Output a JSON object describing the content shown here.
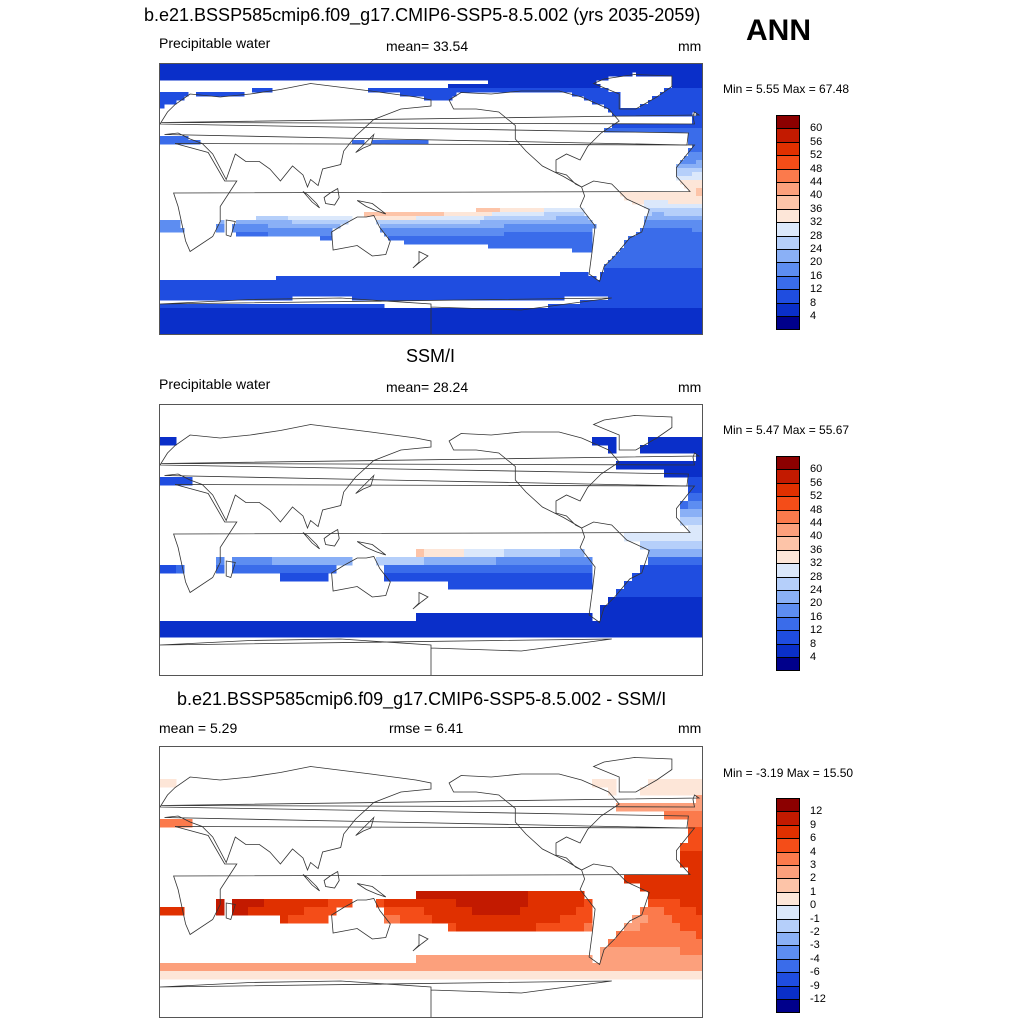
{
  "season": "ANN",
  "panels": [
    {
      "title": "b.e21.BSSP585cmip6.f09_g17.CMIP6-SSP5-8.5.002 (yrs 2035-2059)",
      "left_label": "Precipitable water",
      "center_label": "mean=  33.54",
      "units": "mm",
      "minmax": "Min =   5.55 Max =  67.48",
      "kind": "model"
    },
    {
      "title": "SSM/I",
      "left_label": "Precipitable water",
      "center_label": "mean=  28.24",
      "units": "mm",
      "minmax": "Min =   5.47 Max =  55.67",
      "kind": "obs"
    },
    {
      "title": "b.e21.BSSP585cmip6.f09_g17.CMIP6-SSP5-8.5.002 - SSM/I",
      "left_label": "mean =   5.29",
      "center_label": "rmse =   6.41",
      "units": "mm",
      "minmax": "Min =  -3.19 Max =  15.50",
      "kind": "diff"
    }
  ],
  "colorbars": [
    {
      "ticks": [
        "60",
        "56",
        "52",
        "48",
        "44",
        "40",
        "36",
        "32",
        "28",
        "24",
        "20",
        "16",
        "12",
        "8",
        "4"
      ],
      "colors": [
        "#8c0000",
        "#c31a00",
        "#e03000",
        "#f44d18",
        "#fb7a4c",
        "#fca07c",
        "#fdc4a8",
        "#fde6d8",
        "#dbe8fb",
        "#b5cffa",
        "#8ab0f6",
        "#5d8df1",
        "#3a6cea",
        "#1f4de0",
        "#0a2fc9",
        "#00008b"
      ]
    },
    {
      "ticks": [
        "60",
        "56",
        "52",
        "48",
        "44",
        "40",
        "36",
        "32",
        "28",
        "24",
        "20",
        "16",
        "12",
        "8",
        "4"
      ],
      "colors": [
        "#8c0000",
        "#c31a00",
        "#e03000",
        "#f44d18",
        "#fb7a4c",
        "#fca07c",
        "#fdc4a8",
        "#fde6d8",
        "#dbe8fb",
        "#b5cffa",
        "#8ab0f6",
        "#5d8df1",
        "#3a6cea",
        "#1f4de0",
        "#0a2fc9",
        "#00008b"
      ]
    },
    {
      "ticks": [
        "12",
        "9",
        "6",
        "4",
        "3",
        "2",
        "1",
        "0",
        "-1",
        "-2",
        "-3",
        "-4",
        "-6",
        "-9",
        "-12"
      ],
      "colors": [
        "#8c0000",
        "#c31a00",
        "#e03000",
        "#f44d18",
        "#fb7a4c",
        "#fca07c",
        "#fdc4a8",
        "#fde6d8",
        "#dbe8fb",
        "#b5cffa",
        "#8ab0f6",
        "#5d8df1",
        "#3a6cea",
        "#1f4de0",
        "#0a2fc9",
        "#00008b"
      ]
    }
  ],
  "chart_data": {
    "type": "heatmap",
    "variable": "Precipitable water",
    "units": "mm",
    "season": "ANN",
    "maps": [
      {
        "name": "b.e21.BSSP585cmip6.f09_g17.CMIP6-SSP5-8.5.002 (yrs 2035-2059)",
        "mean": 33.54,
        "min": 5.55,
        "max": 67.48,
        "levels": [
          4,
          8,
          12,
          16,
          20,
          24,
          28,
          32,
          36,
          40,
          44,
          48,
          52,
          56,
          60
        ]
      },
      {
        "name": "SSM/I",
        "mean": 28.24,
        "min": 5.47,
        "max": 55.67,
        "levels": [
          4,
          8,
          12,
          16,
          20,
          24,
          28,
          32,
          36,
          40,
          44,
          48,
          52,
          56,
          60
        ]
      },
      {
        "name": "b.e21.BSSP585cmip6.f09_g17.CMIP6-SSP5-8.5.002 - SSM/I",
        "mean": 5.29,
        "rmse": 6.41,
        "min": -3.19,
        "max": 15.5,
        "levels": [
          -12,
          -9,
          -6,
          -4,
          -3,
          -2,
          -1,
          0,
          1,
          2,
          3,
          4,
          6,
          9,
          12
        ]
      }
    ]
  }
}
